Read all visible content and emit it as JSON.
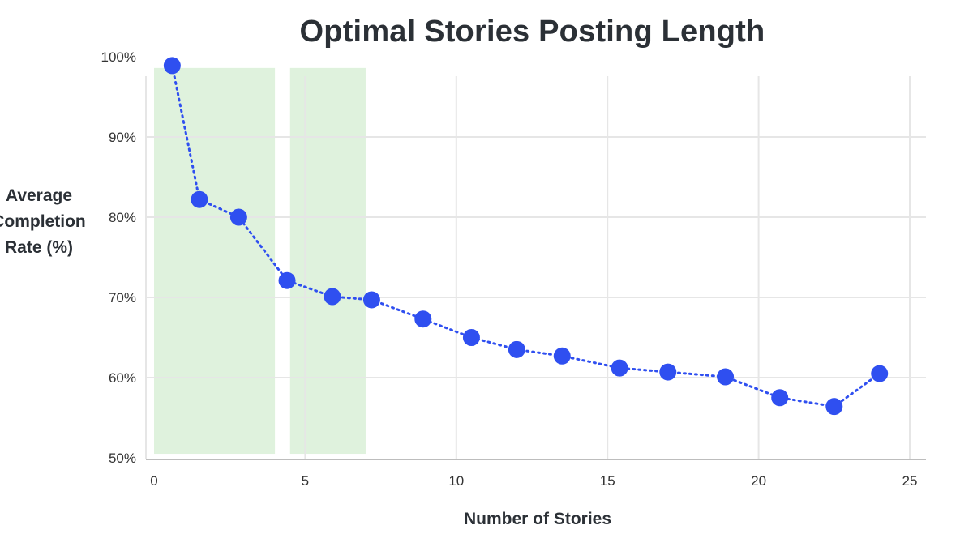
{
  "chart_data": {
    "type": "line",
    "title": "Optimal Stories Posting Length",
    "xlabel": "Number of Stories",
    "ylabel": [
      "Average",
      "Completion",
      "Rate (%)"
    ],
    "xlim": [
      0,
      25
    ],
    "ylim": [
      50,
      100
    ],
    "xticks": [
      0,
      5,
      10,
      15,
      20,
      25
    ],
    "yticks": [
      50,
      60,
      70,
      80,
      90,
      100
    ],
    "ytick_labels": [
      "50%",
      "60%",
      "70%",
      "80%",
      "90%",
      "100%"
    ],
    "grid": true,
    "highlight_ranges": [
      [
        0,
        4
      ],
      [
        4.5,
        7
      ]
    ],
    "colors": {
      "series": "#2f4ff0",
      "highlight": "#dff2dd",
      "grid": "#e6e6e6"
    },
    "series": [
      {
        "x": [
          0.6,
          1.5,
          2.8,
          4.4,
          5.9,
          7.2,
          8.9,
          10.5,
          12.0,
          13.5,
          15.4,
          17.0,
          18.9,
          20.7,
          22.5,
          24.0
        ],
        "y": [
          98.9,
          82.2,
          80.0,
          72.1,
          70.1,
          69.7,
          67.3,
          65.0,
          63.5,
          62.7,
          61.2,
          60.7,
          60.1,
          57.5,
          56.4,
          60.5
        ]
      }
    ]
  }
}
